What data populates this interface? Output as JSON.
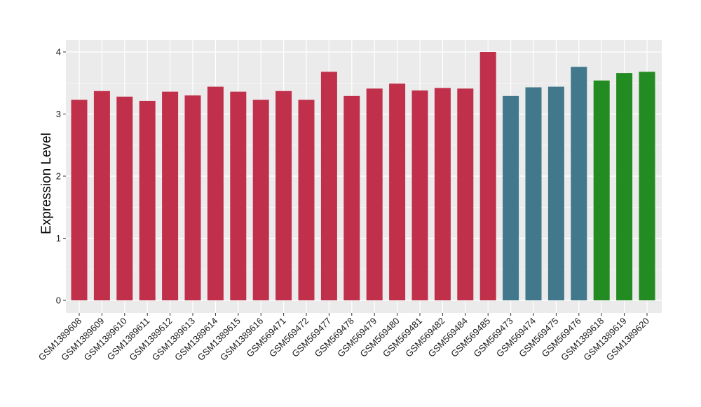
{
  "chart_data": {
    "type": "bar",
    "title": "",
    "xlabel": "",
    "ylabel": "Expression Level",
    "ylim": [
      0,
      4
    ],
    "yticks": [
      0,
      1,
      2,
      3,
      4
    ],
    "grid": true,
    "legend": "none",
    "panel_background": "#ebebeb",
    "grid_color": "#ffffff",
    "categories": [
      "GSM1389608",
      "GSM1389609",
      "GSM1389610",
      "GSM1389611",
      "GSM1389612",
      "GSM1389613",
      "GSM1389614",
      "GSM1389615",
      "GSM1389616",
      "GSM569471",
      "GSM569472",
      "GSM569477",
      "GSM569478",
      "GSM569479",
      "GSM569480",
      "GSM569481",
      "GSM569482",
      "GSM569484",
      "GSM569485",
      "GSM569473",
      "GSM569474",
      "GSM569475",
      "GSM569476",
      "GSM1389618",
      "GSM1389619",
      "GSM1389620"
    ],
    "values": [
      3.23,
      3.37,
      3.28,
      3.21,
      3.36,
      3.3,
      3.44,
      3.36,
      3.23,
      3.37,
      3.23,
      3.68,
      3.29,
      3.41,
      3.49,
      3.38,
      3.42,
      3.41,
      4.0,
      3.29,
      3.43,
      3.44,
      3.76,
      3.54,
      3.66,
      3.68
    ],
    "bar_colors": [
      "#c0304a",
      "#c0304a",
      "#c0304a",
      "#c0304a",
      "#c0304a",
      "#c0304a",
      "#c0304a",
      "#c0304a",
      "#c0304a",
      "#c0304a",
      "#c0304a",
      "#c0304a",
      "#c0304a",
      "#c0304a",
      "#c0304a",
      "#c0304a",
      "#c0304a",
      "#c0304a",
      "#c0304a",
      "#41788c",
      "#41788c",
      "#41788c",
      "#41788c",
      "#228b22",
      "#228b22",
      "#228b22"
    ]
  }
}
